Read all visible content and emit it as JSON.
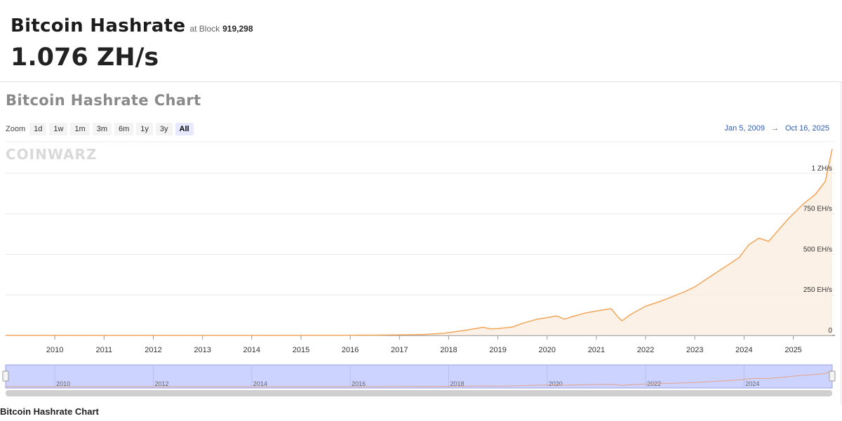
{
  "header": {
    "title": "Bitcoin Hashrate",
    "at_block_label": "at Block",
    "block_number": "919,298",
    "current_value": "1.076 ZH/s"
  },
  "chart_section": {
    "heading": "Bitcoin Hashrate Chart",
    "zoom_label": "Zoom",
    "zoom_options": [
      "1d",
      "1w",
      "1m",
      "3m",
      "6m",
      "1y",
      "3y",
      "All"
    ],
    "active_zoom": "All",
    "range_start": "Jan 5, 2009",
    "range_arrow": "→",
    "range_end": "Oct 16, 2025",
    "watermark": "COINWARZ"
  },
  "footer": {
    "caption": "Bitcoin Hashrate Chart"
  },
  "colors": {
    "line": "#f2a65a",
    "navigator_bg": "#cdd3ff",
    "active_zoom_bg": "#e6e9ff",
    "date_text": "#335cad"
  },
  "chart_data": {
    "type": "area",
    "y_unit": "EH/s",
    "x": [
      2009.0,
      2010.0,
      2011.0,
      2012.0,
      2013.0,
      2014.0,
      2015.0,
      2016.0,
      2016.5,
      2017.0,
      2017.5,
      2017.9,
      2018.3,
      2018.7,
      2018.85,
      2019.0,
      2019.3,
      2019.5,
      2019.8,
      2020.0,
      2020.2,
      2020.35,
      2020.5,
      2020.8,
      2021.0,
      2021.3,
      2021.45,
      2021.52,
      2021.7,
      2022.0,
      2022.3,
      2022.55,
      2022.8,
      2023.0,
      2023.3,
      2023.6,
      2023.9,
      2024.1,
      2024.3,
      2024.5,
      2024.7,
      2024.9,
      2025.2,
      2025.45,
      2025.65,
      2025.79
    ],
    "y": [
      0,
      0,
      0,
      0,
      0.01,
      0.2,
      0.5,
      1.2,
      1.8,
      3,
      6,
      13,
      30,
      50,
      40,
      42,
      52,
      75,
      100,
      110,
      120,
      100,
      115,
      140,
      150,
      165,
      110,
      90,
      130,
      180,
      210,
      240,
      270,
      300,
      360,
      420,
      480,
      560,
      600,
      580,
      650,
      720,
      810,
      870,
      950,
      1150
    ],
    "y_ticks": [
      {
        "value": 0,
        "label": "0"
      },
      {
        "value": 250,
        "label": "250 EH/s"
      },
      {
        "value": 500,
        "label": "500 EH/s"
      },
      {
        "value": 750,
        "label": "750 EH/s"
      },
      {
        "value": 1000,
        "label": "1 ZH/s"
      }
    ],
    "x_ticks": [
      "2010",
      "2011",
      "2012",
      "2013",
      "2014",
      "2015",
      "2016",
      "2017",
      "2018",
      "2019",
      "2020",
      "2021",
      "2022",
      "2023",
      "2024",
      "2025"
    ],
    "navigator_ticks": [
      "2010",
      "2012",
      "2014",
      "2016",
      "2018",
      "2020",
      "2022",
      "2024"
    ],
    "xlim": [
      2009.0,
      2025.79
    ],
    "ylim": [
      0,
      1160
    ],
    "grid": true
  }
}
